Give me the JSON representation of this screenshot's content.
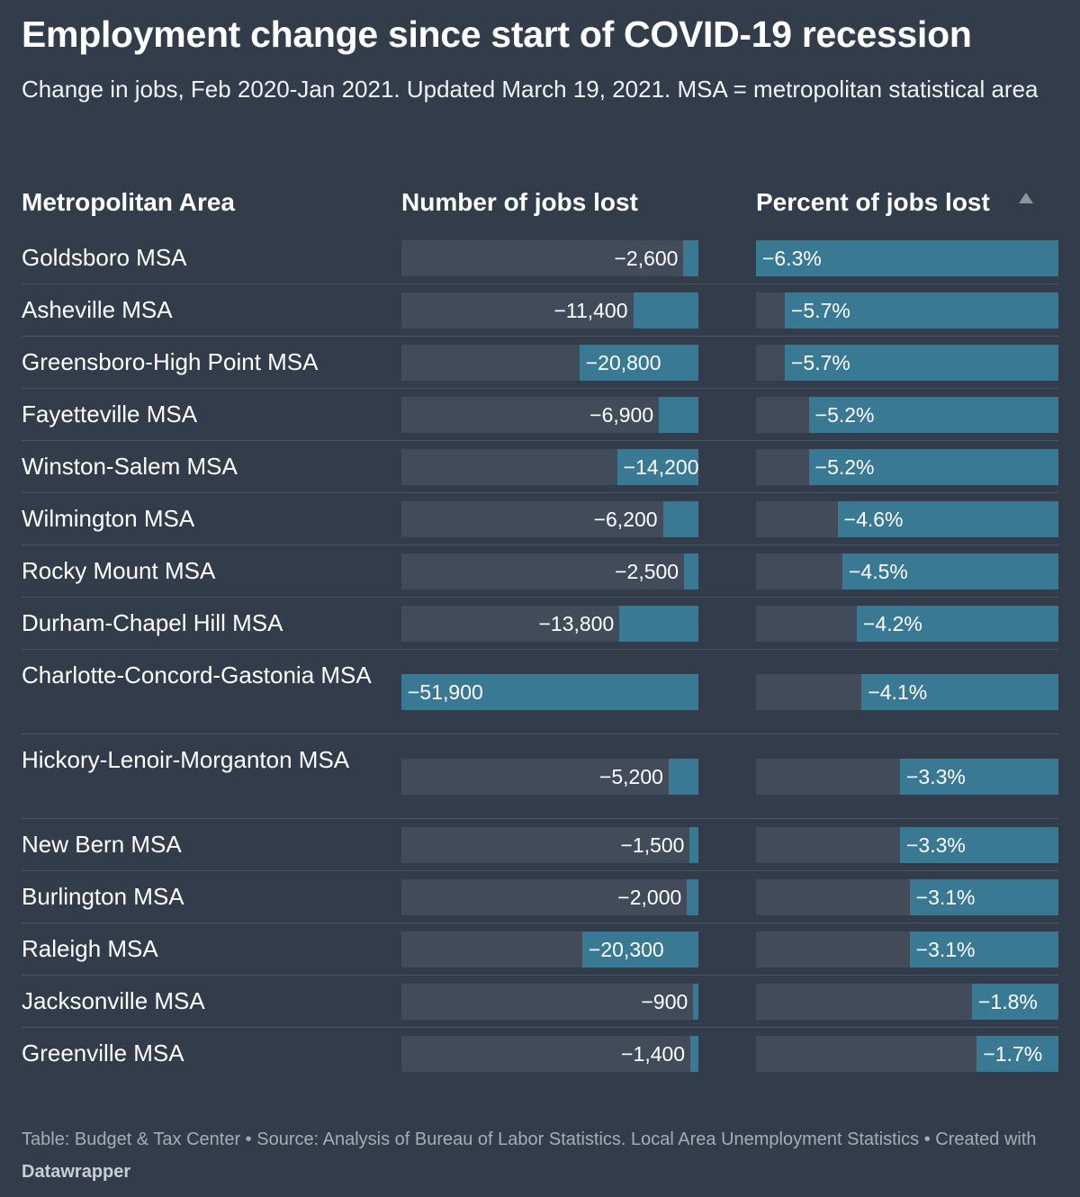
{
  "title": "Employment change since start of COVID-19 recession",
  "subtitle": "Change in jobs, Feb 2020-Jan 2021. Updated March 19, 2021. MSA = metropolitan statistical area",
  "columns": {
    "area": "Metropolitan Area",
    "jobs": "Number of jobs lost",
    "pct": "Percent of jobs lost"
  },
  "sort": {
    "column": "pct",
    "icon": "sort-ascending-icon"
  },
  "colors": {
    "background": "#323c4a",
    "bar": "#3a7994",
    "track": "#414b5a"
  },
  "chart_data": {
    "type": "table",
    "jobs_max": 51900,
    "pct_max": 6.3,
    "rows": [
      {
        "area": "Goldsboro MSA",
        "jobs": -2600,
        "jobs_label": "−2,600",
        "pct": -6.3,
        "pct_label": "−6.3%"
      },
      {
        "area": "Asheville MSA",
        "jobs": -11400,
        "jobs_label": "−11,400",
        "pct": -5.7,
        "pct_label": "−5.7%"
      },
      {
        "area": "Greensboro-High Point MSA",
        "jobs": -20800,
        "jobs_label": "−20,800",
        "pct": -5.7,
        "pct_label": "−5.7%"
      },
      {
        "area": "Fayetteville MSA",
        "jobs": -6900,
        "jobs_label": "−6,900",
        "pct": -5.2,
        "pct_label": "−5.2%"
      },
      {
        "area": "Winston-Salem MSA",
        "jobs": -14200,
        "jobs_label": "−14,200",
        "pct": -5.2,
        "pct_label": "−5.2%"
      },
      {
        "area": "Wilmington MSA",
        "jobs": -6200,
        "jobs_label": "−6,200",
        "pct": -4.6,
        "pct_label": "−4.6%"
      },
      {
        "area": "Rocky Mount MSA",
        "jobs": -2500,
        "jobs_label": "−2,500",
        "pct": -4.5,
        "pct_label": "−4.5%"
      },
      {
        "area": "Durham-Chapel Hill MSA",
        "jobs": -13800,
        "jobs_label": "−13,800",
        "pct": -4.2,
        "pct_label": "−4.2%"
      },
      {
        "area": "Charlotte-Concord-Gastonia MSA",
        "jobs": -51900,
        "jobs_label": "−51,900",
        "pct": -4.1,
        "pct_label": "−4.1%"
      },
      {
        "area": "Hickory-Lenoir-Morganton MSA",
        "jobs": -5200,
        "jobs_label": "−5,200",
        "pct": -3.3,
        "pct_label": "−3.3%"
      },
      {
        "area": "New Bern MSA",
        "jobs": -1500,
        "jobs_label": "−1,500",
        "pct": -3.3,
        "pct_label": "−3.3%"
      },
      {
        "area": "Burlington MSA",
        "jobs": -2000,
        "jobs_label": "−2,000",
        "pct": -3.1,
        "pct_label": "−3.1%"
      },
      {
        "area": "Raleigh MSA",
        "jobs": -20300,
        "jobs_label": "−20,300",
        "pct": -3.1,
        "pct_label": "−3.1%"
      },
      {
        "area": "Jacksonville MSA",
        "jobs": -900,
        "jobs_label": "−900",
        "pct": -1.8,
        "pct_label": "−1.8%"
      },
      {
        "area": "Greenville MSA",
        "jobs": -1400,
        "jobs_label": "−1,400",
        "pct": -1.7,
        "pct_label": "−1.7%"
      }
    ]
  },
  "footer": {
    "text": "Table: Budget & Tax Center • Source: Analysis of Bureau of Labor Statistics. Local Area Unemployment Statistics • Created with ",
    "brand": "Datawrapper"
  }
}
